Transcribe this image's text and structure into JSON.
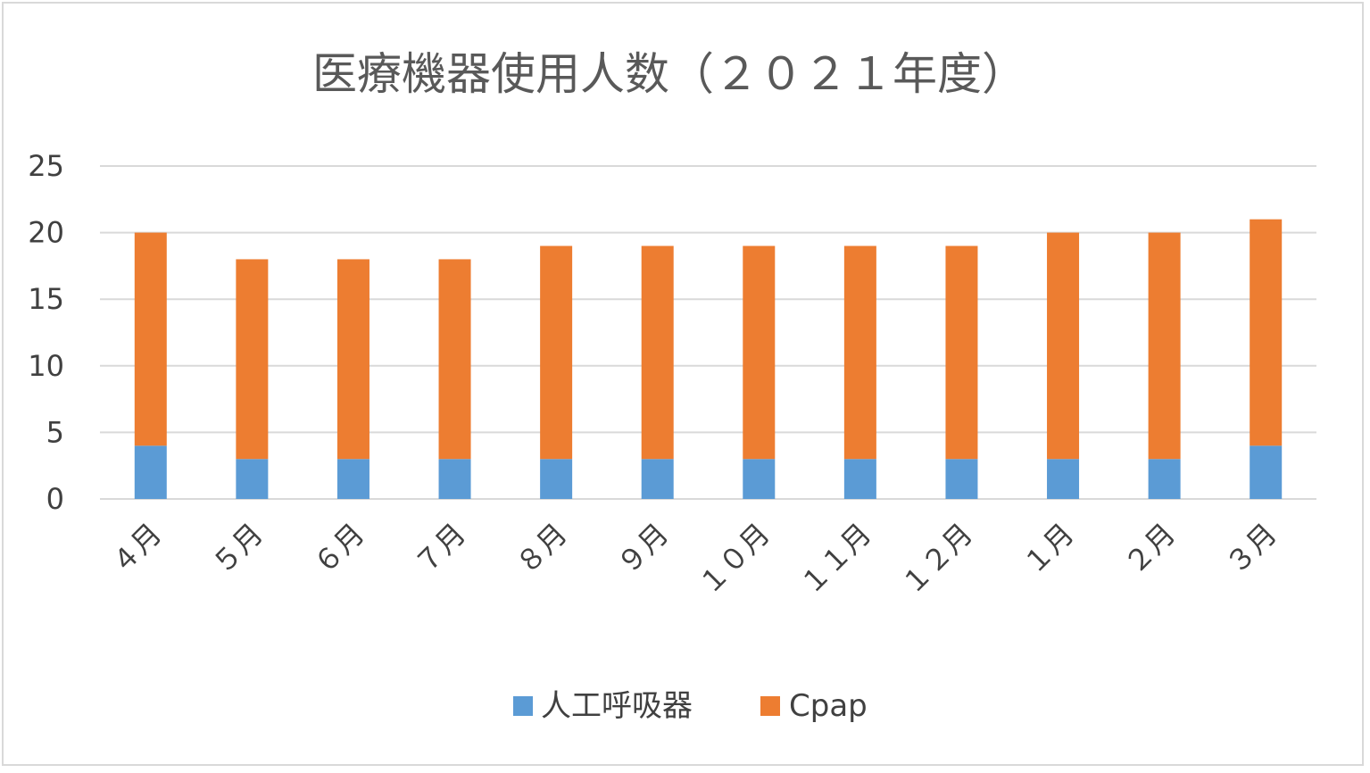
{
  "chart_data": {
    "type": "bar",
    "stacked": true,
    "title": "医療機器使用人数（２０２１年度）",
    "categories": [
      "４月",
      "５月",
      "６月",
      "７月",
      "８月",
      "９月",
      "１０月",
      "１１月",
      "１２月",
      "１月",
      "２月",
      "３月"
    ],
    "series": [
      {
        "name": "人工呼吸器",
        "values": [
          4,
          3,
          3,
          3,
          3,
          3,
          3,
          3,
          3,
          3,
          3,
          4
        ],
        "color": "#5b9bd5"
      },
      {
        "name": "Cpap",
        "values": [
          16,
          15,
          15,
          15,
          16,
          16,
          16,
          16,
          16,
          17,
          17,
          17
        ],
        "color": "#ed7d31"
      }
    ],
    "ylim": [
      0,
      25
    ],
    "yticks": [
      0,
      5,
      10,
      15,
      20,
      25
    ],
    "grid": true,
    "legend": "bottom",
    "gridline_color": "#d9d9d9"
  }
}
